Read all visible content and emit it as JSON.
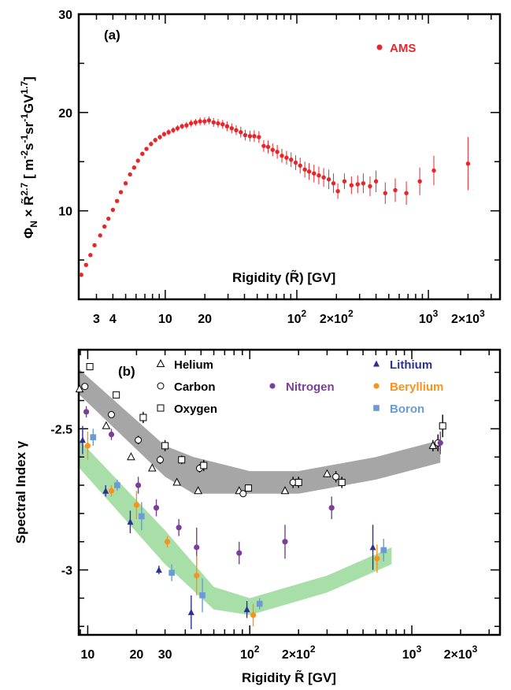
{
  "chart_data": [
    {
      "type": "scatter",
      "panel_label": "(a)",
      "xlabel": "Rigidity  (R̃) [GV]",
      "ylabel": "ΦN × R̃2.7  [ m-2s-1sr-1GV1.7]",
      "ylabel_parts": {
        "phi": "Φ",
        "phi_sub": "N",
        "times": " × ",
        "r": "R̃",
        "r_sup": "2.7",
        "units_open": "  [ m",
        "m_sup": "-2",
        "s": "s",
        "s_sup": "-1",
        "sr": "sr",
        "sr_sup": "-1",
        "gv": "GV",
        "gv_sup": "1.7",
        "units_close": "]"
      },
      "x_scale": "log",
      "xlim": [
        2.2,
        3500
      ],
      "ylim": [
        1,
        30
      ],
      "xtick_labels": [
        {
          "value": 3,
          "text": "3"
        },
        {
          "value": 4,
          "text": "4"
        },
        {
          "value": 10,
          "text": "10"
        },
        {
          "value": 20,
          "text": "20"
        },
        {
          "value": 100,
          "base": "10",
          "sup": "2"
        },
        {
          "value": 200,
          "base": "2×10",
          "sup": "2"
        },
        {
          "value": 1000,
          "base": "10",
          "sup": "3"
        },
        {
          "value": 2000,
          "base": "2×10",
          "sup": "3"
        }
      ],
      "ytick_labels": [
        {
          "value": 10,
          "text": "10"
        },
        {
          "value": 20,
          "text": "20"
        },
        {
          "value": 30,
          "text": "30"
        }
      ],
      "legend": {
        "position": "top-right",
        "entries": [
          {
            "name": "AMS",
            "color": "#e8262a",
            "marker": "circle"
          }
        ]
      },
      "series": [
        {
          "name": "AMS",
          "color": "#e8262a",
          "points": [
            [
              2.3,
              3.5,
              0.15
            ],
            [
              2.5,
              4.5,
              0.15
            ],
            [
              2.7,
              5.5,
              0.15
            ],
            [
              2.9,
              6.5,
              0.15
            ],
            [
              3.2,
              7.5,
              0.15
            ],
            [
              3.45,
              8.4,
              0.15
            ],
            [
              3.7,
              9.2,
              0.15
            ],
            [
              4.0,
              10.1,
              0.15
            ],
            [
              4.3,
              11.0,
              0.15
            ],
            [
              4.6,
              11.9,
              0.15
            ],
            [
              5.0,
              12.8,
              0.15
            ],
            [
              5.4,
              13.7,
              0.2
            ],
            [
              5.8,
              14.4,
              0.2
            ],
            [
              6.2,
              15.1,
              0.2
            ],
            [
              6.7,
              15.8,
              0.2
            ],
            [
              7.2,
              16.3,
              0.2
            ],
            [
              7.8,
              16.8,
              0.25
            ],
            [
              8.4,
              17.2,
              0.25
            ],
            [
              9.1,
              17.5,
              0.25
            ],
            [
              9.8,
              17.8,
              0.25
            ],
            [
              10.6,
              18.0,
              0.3
            ],
            [
              11.5,
              18.2,
              0.3
            ],
            [
              12.4,
              18.4,
              0.3
            ],
            [
              13.4,
              18.6,
              0.3
            ],
            [
              14.5,
              18.7,
              0.35
            ],
            [
              15.7,
              18.9,
              0.35
            ],
            [
              17.0,
              19.0,
              0.35
            ],
            [
              18.4,
              19.1,
              0.4
            ],
            [
              19.9,
              19.1,
              0.4
            ],
            [
              21.5,
              19.2,
              0.4
            ],
            [
              23.3,
              19.0,
              0.45
            ],
            [
              25.2,
              18.9,
              0.45
            ],
            [
              27.3,
              18.8,
              0.45
            ],
            [
              29.5,
              18.6,
              0.5
            ],
            [
              32.0,
              18.4,
              0.5
            ],
            [
              34.6,
              18.2,
              0.5
            ],
            [
              37.5,
              18.0,
              0.55
            ],
            [
              40.5,
              17.7,
              0.55
            ],
            [
              44.0,
              17.6,
              0.55
            ],
            [
              47.5,
              17.6,
              0.6
            ],
            [
              51.5,
              17.5,
              0.6
            ],
            [
              56.0,
              16.6,
              0.6
            ],
            [
              60.5,
              16.5,
              0.65
            ],
            [
              65.5,
              16.2,
              0.65
            ],
            [
              71.0,
              16.0,
              0.7
            ],
            [
              77.0,
              15.6,
              0.7
            ],
            [
              83.5,
              15.4,
              0.7
            ],
            [
              90.5,
              15.2,
              0.75
            ],
            [
              98.0,
              14.9,
              0.75
            ],
            [
              106,
              14.6,
              0.8
            ],
            [
              115,
              14.2,
              0.8
            ],
            [
              124,
              14.0,
              0.85
            ],
            [
              135,
              13.8,
              0.9
            ],
            [
              147,
              13.6,
              0.9
            ],
            [
              160,
              13.4,
              0.95
            ],
            [
              175,
              13.2,
              1.0
            ],
            [
              190,
              12.8,
              1.0
            ],
            [
              205,
              12.0,
              0.8
            ],
            [
              230,
              13.0,
              0.8
            ],
            [
              260,
              12.6,
              0.9
            ],
            [
              290,
              12.7,
              0.9
            ],
            [
              320,
              12.8,
              1.0
            ],
            [
              360,
              12.5,
              1.0
            ],
            [
              400,
              13.0,
              1.1
            ],
            [
              470,
              11.8,
              1.1
            ],
            [
              560,
              12.1,
              1.2
            ],
            [
              680,
              11.8,
              1.2
            ],
            [
              860,
              13.0,
              1.4
            ],
            [
              1100,
              14.1,
              1.5
            ],
            [
              2000,
              14.8,
              2.7
            ]
          ]
        }
      ]
    },
    {
      "type": "scatter",
      "panel_label": "(b)",
      "xlabel": "Rigidity R̃ [GV]",
      "ylabel": "Spectral Index γ",
      "x_scale": "log",
      "xlim": [
        8.8,
        3500
      ],
      "ylim": [
        -3.23,
        -2.22
      ],
      "xtick_labels": [
        {
          "value": 10,
          "text": "10"
        },
        {
          "value": 20,
          "text": "20"
        },
        {
          "value": 30,
          "text": "30"
        },
        {
          "value": 100,
          "base": "10",
          "sup": "2"
        },
        {
          "value": 200,
          "base": "2×10",
          "sup": "2"
        },
        {
          "value": 1000,
          "base": "10",
          "sup": "3"
        },
        {
          "value": 2000,
          "base": "2×10",
          "sup": "3"
        }
      ],
      "ytick_labels": [
        {
          "value": -2.5,
          "text": "-2.5"
        },
        {
          "value": -3.0,
          "text": "-3"
        }
      ],
      "legend": {
        "position": "top",
        "entries": [
          {
            "name": "Helium",
            "color": "#000000",
            "marker": "open-triangle"
          },
          {
            "name": "Carbon",
            "color": "#000000",
            "marker": "open-circle"
          },
          {
            "name": "Oxygen",
            "color": "#000000",
            "marker": "open-square"
          },
          {
            "name": "Nitrogen",
            "color": "#7b3f99",
            "marker": "circle"
          },
          {
            "name": "Lithium",
            "color": "#2e3192",
            "marker": "triangle"
          },
          {
            "name": "Beryllium",
            "color": "#f7941d",
            "marker": "circle"
          },
          {
            "name": "Boron",
            "color": "#6a9bd5",
            "marker": "square"
          }
        ]
      },
      "bands": [
        {
          "color": "#a6a6a6",
          "upper": [
            [
              8.9,
              -2.29
            ],
            [
              30,
              -2.56
            ],
            [
              45,
              -2.6
            ],
            [
              100,
              -2.65
            ],
            [
              200,
              -2.65
            ],
            [
              600,
              -2.6
            ],
            [
              1500,
              -2.54
            ]
          ],
          "lower": [
            [
              8.9,
              -2.38
            ],
            [
              30,
              -2.67
            ],
            [
              45,
              -2.73
            ],
            [
              100,
              -2.73
            ],
            [
              200,
              -2.73
            ],
            [
              600,
              -2.68
            ],
            [
              1500,
              -2.62
            ]
          ]
        },
        {
          "color": "#a8dfa8",
          "upper": [
            [
              8.9,
              -2.54
            ],
            [
              30,
              -2.86
            ],
            [
              60,
              -3.06
            ],
            [
              100,
              -3.1
            ],
            [
              300,
              -3.02
            ],
            [
              750,
              -2.92
            ]
          ],
          "lower": [
            [
              8.9,
              -2.64
            ],
            [
              30,
              -2.98
            ],
            [
              60,
              -3.14
            ],
            [
              100,
              -3.16
            ],
            [
              300,
              -3.08
            ],
            [
              750,
              -2.98
            ]
          ]
        }
      ],
      "series": [
        {
          "name": "Helium",
          "color": "#000000",
          "marker": "open-triangle",
          "points": [
            [
              8.9,
              -2.36,
              0.01
            ],
            [
              13,
              -2.49,
              0.01
            ],
            [
              18.5,
              -2.6,
              0.01
            ],
            [
              25,
              -2.64,
              0.01
            ],
            [
              35.5,
              -2.69,
              0.01
            ],
            [
              48,
              -2.72,
              0.01
            ],
            [
              86,
              -2.72,
              0.01
            ],
            [
              165,
              -2.72,
              0.01
            ],
            [
              300,
              -2.66,
              0.01
            ],
            [
              1350,
              -2.56,
              0.02
            ]
          ]
        },
        {
          "name": "Carbon",
          "color": "#000000",
          "marker": "open-circle",
          "points": [
            [
              9.6,
              -2.35,
              0.01
            ],
            [
              14,
              -2.45,
              0.01
            ],
            [
              20.5,
              -2.54,
              0.015
            ],
            [
              28,
              -2.61,
              0.015
            ],
            [
              49,
              -2.64,
              0.015
            ],
            [
              91,
              -2.73,
              0.01
            ],
            [
              185,
              -2.69,
              0.02
            ],
            [
              340,
              -2.67,
              0.02
            ],
            [
              1450,
              -2.55,
              0.03
            ]
          ]
        },
        {
          "name": "Oxygen",
          "color": "#000000",
          "marker": "open-square",
          "points": [
            [
              10.3,
              -2.28,
              0.01
            ],
            [
              15,
              -2.38,
              0.01
            ],
            [
              22,
              -2.46,
              0.02
            ],
            [
              30,
              -2.56,
              0.02
            ],
            [
              38,
              -2.61,
              0.015
            ],
            [
              52,
              -2.63,
              0.02
            ],
            [
              98,
              -2.71,
              0.01
            ],
            [
              200,
              -2.69,
              0.02
            ],
            [
              370,
              -2.69,
              0.02
            ],
            [
              1550,
              -2.49,
              0.04
            ]
          ]
        },
        {
          "name": "Nitrogen",
          "color": "#7b3f99",
          "marker": "circle",
          "points": [
            [
              9.8,
              -2.44,
              0.02
            ],
            [
              14,
              -2.52,
              0.02
            ],
            [
              20.5,
              -2.7,
              0.03
            ],
            [
              26.5,
              -2.78,
              0.03
            ],
            [
              36.5,
              -2.85,
              0.03
            ],
            [
              47,
              -2.92,
              0.07
            ],
            [
              86,
              -2.94,
              0.04
            ],
            [
              165,
              -2.9,
              0.06
            ],
            [
              320,
              -2.78,
              0.04
            ],
            [
              1500,
              -2.55,
              0.04
            ]
          ]
        },
        {
          "name": "Lithium",
          "color": "#2e3192",
          "marker": "triangle",
          "points": [
            [
              9.3,
              -2.54,
              0.05
            ],
            [
              12.9,
              -2.72,
              0.02
            ],
            [
              18.3,
              -2.83,
              0.04
            ],
            [
              27.5,
              -3.0,
              0.015
            ],
            [
              43.5,
              -3.15,
              0.06
            ],
            [
              96,
              -3.14,
              0.03
            ],
            [
              575,
              -2.92,
              0.08
            ]
          ]
        },
        {
          "name": "Beryllium",
          "color": "#f7941d",
          "marker": "circle",
          "points": [
            [
              10,
              -2.56,
              0.05
            ],
            [
              14,
              -2.72,
              0.02
            ],
            [
              20,
              -2.77,
              0.05
            ],
            [
              31,
              -2.9,
              0.02
            ],
            [
              47,
              -3.02,
              0.07
            ],
            [
              105,
              -3.16,
              0.04
            ],
            [
              610,
              -2.96,
              0.05
            ]
          ]
        },
        {
          "name": "Boron",
          "color": "#6a9bd5",
          "marker": "square",
          "points": [
            [
              10.8,
              -2.53,
              0.03
            ],
            [
              15.2,
              -2.7,
              0.02
            ],
            [
              21.5,
              -2.81,
              0.05
            ],
            [
              33,
              -3.01,
              0.03
            ],
            [
              51,
              -3.09,
              0.06
            ],
            [
              115,
              -3.12,
              0.02
            ],
            [
              670,
              -2.93,
              0.04
            ]
          ]
        }
      ]
    }
  ]
}
